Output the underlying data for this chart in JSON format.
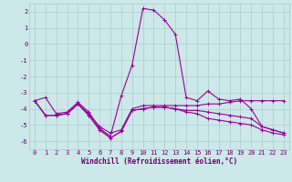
{
  "xlabel": "Windchill (Refroidissement éolien,°C)",
  "x_hours": [
    0,
    1,
    2,
    3,
    4,
    5,
    6,
    7,
    8,
    9,
    10,
    11,
    12,
    13,
    14,
    15,
    16,
    17,
    18,
    19,
    20,
    21,
    22,
    23
  ],
  "series": [
    [
      -3.5,
      -3.3,
      -4.3,
      -4.2,
      -3.6,
      -4.2,
      -5.2,
      -5.7,
      -3.2,
      -1.3,
      2.2,
      2.1,
      1.5,
      0.6,
      -3.3,
      -3.5,
      -2.9,
      -3.4,
      -3.5,
      -3.4,
      -4.0,
      -5.1,
      -5.3,
      -5.5
    ],
    [
      -3.5,
      -4.4,
      -4.4,
      -4.3,
      -3.7,
      -4.3,
      -5.1,
      -5.5,
      -5.3,
      -4.0,
      -3.8,
      -3.8,
      -3.8,
      -3.8,
      -3.8,
      -3.8,
      -3.7,
      -3.7,
      -3.6,
      -3.5,
      -3.5,
      -3.5,
      -3.5,
      -3.5
    ],
    [
      -3.5,
      -4.4,
      -4.4,
      -4.3,
      -3.7,
      -4.4,
      -5.3,
      -5.8,
      -5.4,
      -4.1,
      -4.0,
      -3.9,
      -3.9,
      -4.0,
      -4.1,
      -4.1,
      -4.2,
      -4.3,
      -4.4,
      -4.5,
      -4.6,
      -5.1,
      -5.3,
      -5.5
    ],
    [
      -3.5,
      -4.4,
      -4.4,
      -4.3,
      -3.7,
      -4.4,
      -5.3,
      -5.8,
      -5.4,
      -4.1,
      -4.0,
      -3.9,
      -3.9,
      -4.0,
      -4.2,
      -4.3,
      -4.6,
      -4.7,
      -4.8,
      -4.9,
      -5.0,
      -5.3,
      -5.5,
      -5.6
    ]
  ],
  "background_color": "#cce8e8",
  "grid_color": "#aacccc",
  "ylim": [
    -6.5,
    2.5
  ],
  "yticks": [
    -6,
    -5,
    -4,
    -3,
    -2,
    -1,
    0,
    1,
    2
  ],
  "text_color": "#660066",
  "line_color": "#990099",
  "tick_fontsize": 5.0,
  "xlabel_fontsize": 5.5
}
